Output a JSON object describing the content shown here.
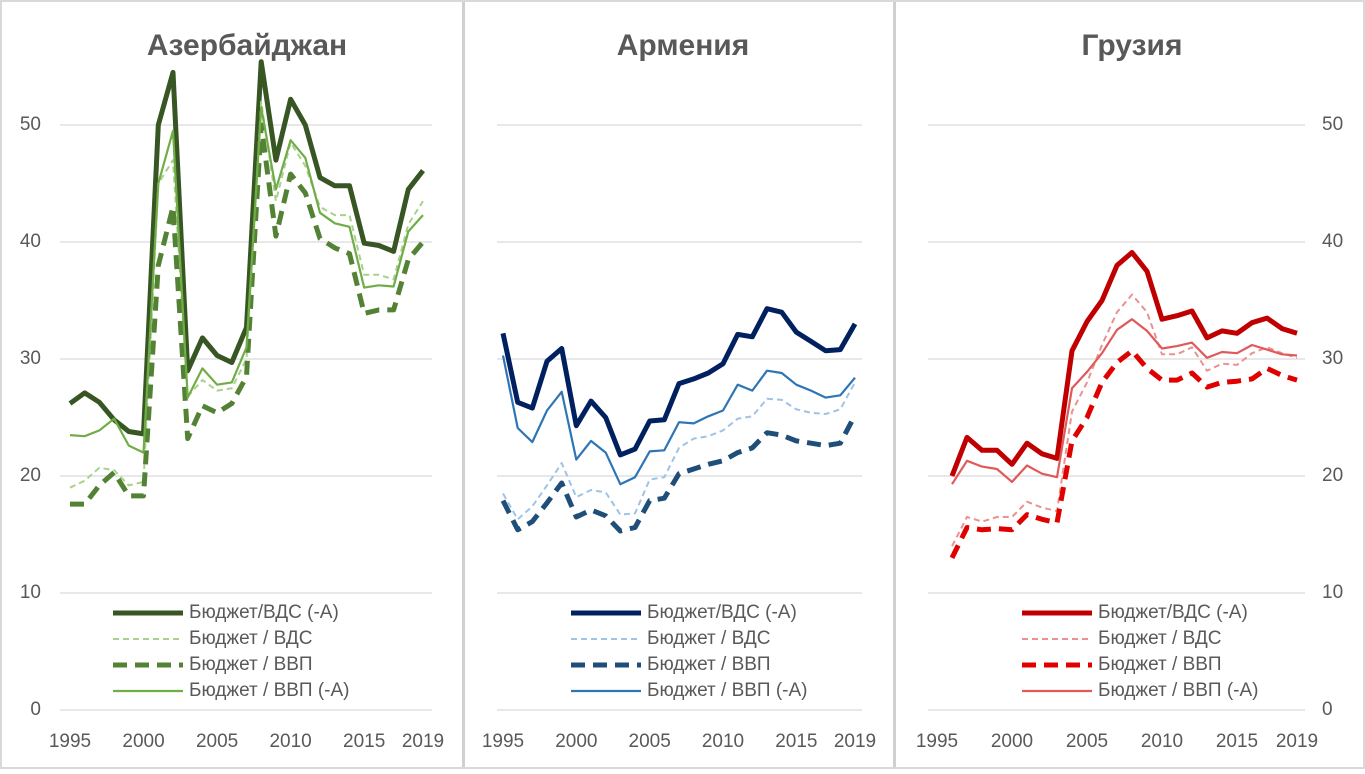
{
  "chart_data": [
    {
      "type": "line",
      "title": "Азербайджан",
      "yaxis_position": "left",
      "legend": "bottom",
      "grid": true,
      "x": [
        1995,
        1996,
        1997,
        1998,
        1999,
        2000,
        2001,
        2002,
        2003,
        2004,
        2005,
        2006,
        2007,
        2008,
        2009,
        2010,
        2011,
        2012,
        2013,
        2014,
        2015,
        2016,
        2017,
        2018,
        2019
      ],
      "xlim": [
        1995,
        2019
      ],
      "xticks": [
        1995,
        2000,
        2005,
        2010,
        2015,
        2019
      ],
      "ylim": [
        0,
        60
      ],
      "yticks": [
        0,
        10,
        20,
        30,
        40,
        50
      ],
      "series": [
        {
          "name": "Бюджет/ВДС (-А)",
          "color": "#375623",
          "linestyle": "solid",
          "values": [
            26.2,
            27.1,
            26.3,
            24.8,
            23.8,
            23.6,
            50,
            54.5,
            29,
            31.8,
            30.3,
            29.7,
            32.7,
            55.4,
            47,
            52.2,
            50,
            45.5,
            44.8,
            44.8,
            39.9,
            39.7,
            39.2,
            44.5,
            46.1
          ]
        },
        {
          "name": "Бюджет / ВДС",
          "color": "#a9d18e",
          "linestyle": "dashed",
          "values": [
            19.0,
            19.6,
            20.7,
            20.5,
            19.2,
            19.5,
            45,
            47,
            26.8,
            28.2,
            27.3,
            27.5,
            30,
            52,
            43.5,
            48.5,
            46.5,
            43,
            42.3,
            42.3,
            37.2,
            37.2,
            36.8,
            41.5,
            43.5
          ]
        },
        {
          "name": "Бюджет / ВВП",
          "color": "#548235",
          "linestyle": "dashed",
          "values": [
            17.6,
            17.6,
            19.2,
            20.3,
            18.3,
            18.3,
            38,
            43,
            23.2,
            26,
            25.4,
            26.2,
            28.5,
            50,
            40.5,
            45.8,
            44.2,
            40.3,
            39.5,
            39,
            33.9,
            34.2,
            34.2,
            38.5,
            40
          ]
        },
        {
          "name": "Бюджет / ВВП (-А)",
          "color": "#70ad47",
          "linestyle": "solid",
          "values": [
            23.5,
            23.4,
            23.9,
            24.9,
            22.6,
            22,
            45,
            49.5,
            26.7,
            29.2,
            27.8,
            28,
            31,
            51.5,
            44.5,
            48.7,
            47.2,
            42.5,
            41.6,
            41.3,
            36.1,
            36.3,
            36.2,
            40.9,
            42.3
          ]
        }
      ]
    },
    {
      "type": "line",
      "title": "Армения",
      "legend": "bottom",
      "grid": true,
      "x": [
        1995,
        1996,
        1997,
        1998,
        1999,
        2000,
        2001,
        2002,
        2003,
        2004,
        2005,
        2006,
        2007,
        2008,
        2009,
        2010,
        2011,
        2012,
        2013,
        2014,
        2015,
        2016,
        2017,
        2018,
        2019
      ],
      "xlim": [
        1995,
        2019
      ],
      "xticks": [
        1995,
        2000,
        2005,
        2010,
        2015,
        2019
      ],
      "ylim": [
        0,
        60
      ],
      "yticks": [
        0,
        10,
        20,
        30,
        40,
        50
      ],
      "series": [
        {
          "name": "Бюджет/ВДС (-А)",
          "color": "#002060",
          "linestyle": "solid",
          "values": [
            32.2,
            26.3,
            25.8,
            29.8,
            30.9,
            24.3,
            26.4,
            25.0,
            21.8,
            22.3,
            24.7,
            24.8,
            27.9,
            28.3,
            28.8,
            29.6,
            32.1,
            31.9,
            34.3,
            34,
            32.3,
            31.5,
            30.7,
            30.8,
            33
          ]
        },
        {
          "name": "Бюджет / ВДС",
          "color": "#9dc3e6",
          "linestyle": "dashed",
          "values": [
            18.5,
            16.3,
            17.4,
            19.2,
            21.1,
            18.2,
            18.8,
            18.6,
            16.7,
            16.8,
            19.7,
            19.9,
            22.4,
            23.2,
            23.4,
            23.9,
            24.9,
            25.1,
            26.6,
            26.5,
            25.7,
            25.4,
            25.3,
            25.7,
            28
          ]
        },
        {
          "name": "Бюджет / ВВП",
          "color": "#1f4e79",
          "linestyle": "dashed",
          "values": [
            17.9,
            15.4,
            16.1,
            17.7,
            19.4,
            16.5,
            17.1,
            16.6,
            15.3,
            15.6,
            17.9,
            18.1,
            20.2,
            20.6,
            21.0,
            21.3,
            22.0,
            22.4,
            23.7,
            23.5,
            23.0,
            22.8,
            22.6,
            22.8,
            25.2
          ]
        },
        {
          "name": "Бюджет / ВВП (-А)",
          "color": "#2e75b6",
          "linestyle": "solid",
          "values": [
            30.3,
            24.1,
            22.9,
            25.6,
            27.2,
            21.4,
            23,
            22,
            19.3,
            19.9,
            22.1,
            22.2,
            24.6,
            24.5,
            25.1,
            25.6,
            27.8,
            27.3,
            29,
            28.8,
            27.8,
            27.3,
            26.7,
            26.9,
            28.4
          ]
        }
      ]
    },
    {
      "type": "line",
      "title": "Грузия",
      "yaxis_position": "right",
      "legend": "bottom",
      "grid": true,
      "x": [
        1995,
        1996,
        1997,
        1998,
        1999,
        2000,
        2001,
        2002,
        2003,
        2004,
        2005,
        2006,
        2007,
        2008,
        2009,
        2010,
        2011,
        2012,
        2013,
        2014,
        2015,
        2016,
        2017,
        2018,
        2019
      ],
      "xlim": [
        1995,
        2019
      ],
      "xticks": [
        1995,
        2000,
        2005,
        2010,
        2015,
        2019
      ],
      "ylim": [
        0,
        60
      ],
      "yticks": [
        0,
        10,
        20,
        30,
        40,
        50
      ],
      "series": [
        {
          "name": "Бюджет/ВДС (-А)",
          "color": "#c00000",
          "linestyle": "solid",
          "values": [
            null,
            20,
            23.3,
            22.2,
            22.2,
            21,
            22.8,
            21.9,
            21.5,
            30.7,
            33.2,
            35,
            38,
            39.1,
            37.5,
            33.4,
            33.7,
            34.1,
            31.8,
            32.4,
            32.2,
            33.1,
            33.5,
            32.6,
            32.2
          ]
        },
        {
          "name": "Бюджет / ВДС",
          "color": "#ec9090",
          "linestyle": "dashed",
          "values": [
            null,
            14,
            16.5,
            16.1,
            16.5,
            16.5,
            17.8,
            17.3,
            17,
            25.5,
            28,
            31.2,
            34,
            35.5,
            34,
            30.4,
            30.4,
            31,
            29,
            29.6,
            29.5,
            30.5,
            31,
            30.5,
            30.1
          ]
        },
        {
          "name": "Бюджет / ВВП",
          "color": "#e00000",
          "linestyle": "dashed",
          "values": [
            null,
            13,
            15.6,
            15.4,
            15.5,
            15.4,
            16.7,
            16.3,
            16,
            23,
            25,
            28,
            29.7,
            30.7,
            29.2,
            28.2,
            28.2,
            28.8,
            27.6,
            28,
            28.1,
            28.3,
            29.2,
            28.6,
            28.2
          ]
        },
        {
          "name": "Бюджет / ВВП (-А)",
          "color": "#e05a5a",
          "linestyle": "solid",
          "values": [
            null,
            19.3,
            21.3,
            20.8,
            20.6,
            19.5,
            20.9,
            20.2,
            19.9,
            27.5,
            28.9,
            30.5,
            32.5,
            33.4,
            32.4,
            30.9,
            31.1,
            31.4,
            30.1,
            30.6,
            30.5,
            31.2,
            30.8,
            30.4,
            30.3
          ]
        }
      ]
    }
  ]
}
